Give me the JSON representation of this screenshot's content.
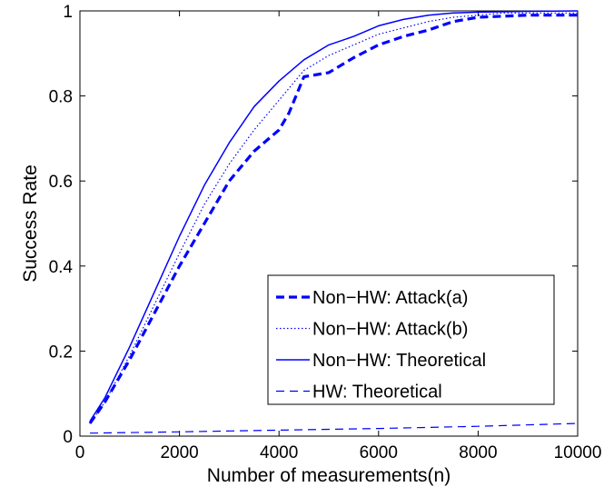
{
  "chart_data": {
    "type": "line",
    "title": "",
    "xlabel": "Number of measurements(n)",
    "ylabel": "Success Rate",
    "xlim": [
      0,
      10000
    ],
    "ylim": [
      0,
      1
    ],
    "xticks": [
      0,
      2000,
      4000,
      6000,
      8000,
      10000
    ],
    "xtick_labels": [
      "0",
      "2000",
      "4000",
      "6000",
      "8000",
      "10000"
    ],
    "yticks": [
      0,
      0.2,
      0.4,
      0.6,
      0.8,
      1
    ],
    "ytick_labels": [
      "0",
      "0.2",
      "0.4",
      "0.6",
      "0.8",
      "1"
    ],
    "grid": false,
    "legend_position": "bottom-right",
    "series": [
      {
        "name": "Non−HW: Attack(a)",
        "style": "bold-dashed",
        "color": "#0000ff",
        "x": [
          200,
          500,
          1000,
          1500,
          2000,
          2500,
          3000,
          3500,
          4000,
          4200,
          4500,
          5000,
          5500,
          6000,
          6500,
          7000,
          7500,
          8000,
          9000,
          10000
        ],
        "y": [
          0.03,
          0.08,
          0.18,
          0.29,
          0.4,
          0.5,
          0.6,
          0.67,
          0.72,
          0.76,
          0.845,
          0.855,
          0.89,
          0.92,
          0.94,
          0.955,
          0.975,
          0.985,
          0.99,
          0.99
        ]
      },
      {
        "name": "Non−HW: Attack(b)",
        "style": "dotted",
        "color": "#0000ff",
        "x": [
          200,
          500,
          1000,
          1500,
          2000,
          2500,
          3000,
          3500,
          4000,
          4500,
          5000,
          5500,
          6000,
          6500,
          7000,
          7500,
          8000,
          8500,
          9000,
          10000
        ],
        "y": [
          0.03,
          0.08,
          0.19,
          0.31,
          0.43,
          0.545,
          0.64,
          0.72,
          0.79,
          0.86,
          0.895,
          0.92,
          0.945,
          0.96,
          0.975,
          0.985,
          0.99,
          0.995,
          0.995,
          0.995
        ]
      },
      {
        "name": "Non−HW: Theoretical",
        "style": "solid",
        "color": "#0000ff",
        "x": [
          200,
          500,
          1000,
          1500,
          2000,
          2500,
          3000,
          3500,
          4000,
          4500,
          5000,
          5500,
          6000,
          6500,
          7000,
          7500,
          8000,
          9000,
          10000
        ],
        "y": [
          0.035,
          0.09,
          0.21,
          0.34,
          0.47,
          0.59,
          0.69,
          0.775,
          0.835,
          0.885,
          0.92,
          0.94,
          0.965,
          0.98,
          0.99,
          0.995,
          0.997,
          0.999,
          1.0
        ]
      },
      {
        "name": "HW: Theoretical",
        "style": "dashed",
        "color": "#0000ff",
        "x": [
          200,
          2000,
          4000,
          6000,
          8000,
          10000
        ],
        "y": [
          0.007,
          0.01,
          0.014,
          0.018,
          0.023,
          0.03
        ]
      }
    ]
  }
}
